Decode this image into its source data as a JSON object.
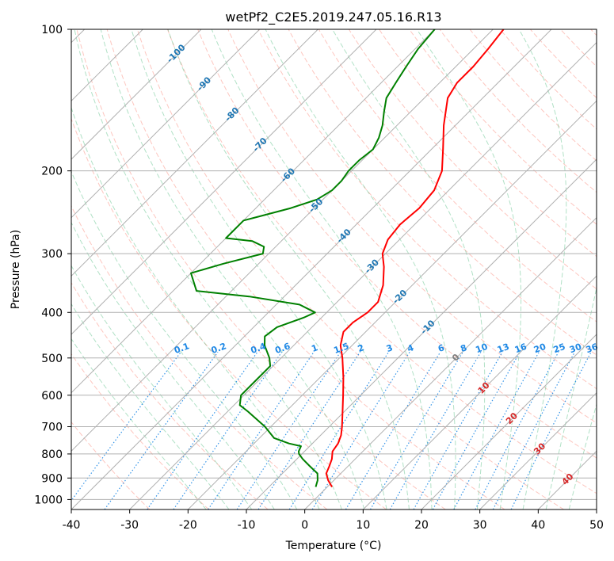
{
  "chart_data": {
    "type": "line",
    "title": "wetPf2_C2E5.2019.247.05.16.R13",
    "xlabel": "Temperature (°C)",
    "ylabel": "Pressure (hPa)",
    "xlim": [
      -40,
      50
    ],
    "ylim": [
      1050,
      100
    ],
    "y_scale": "log",
    "skew": "skew-T",
    "grid": true,
    "x_ticks": [
      "-40",
      "-30",
      "-20",
      "-10",
      "0",
      "10",
      "20",
      "30",
      "40",
      "50"
    ],
    "y_ticks": [
      "100",
      "200",
      "300",
      "400",
      "500",
      "600",
      "700",
      "800",
      "900",
      "1000"
    ],
    "series": [
      {
        "role": "temperature",
        "color": "#ff0000",
        "points": [
          {
            "p": 940,
            "t": 0.8
          },
          {
            "p": 910,
            "t": -1.0
          },
          {
            "p": 880,
            "t": -2.5
          },
          {
            "p": 850,
            "t": -3.2
          },
          {
            "p": 820,
            "t": -4.0
          },
          {
            "p": 790,
            "t": -5.2
          },
          {
            "p": 760,
            "t": -5.6
          },
          {
            "p": 730,
            "t": -6.5
          },
          {
            "p": 700,
            "t": -7.8
          },
          {
            "p": 650,
            "t": -10.3
          },
          {
            "p": 600,
            "t": -13.0
          },
          {
            "p": 550,
            "t": -16.0
          },
          {
            "p": 500,
            "t": -19.5
          },
          {
            "p": 470,
            "t": -22.0
          },
          {
            "p": 440,
            "t": -23.8
          },
          {
            "p": 420,
            "t": -23.8
          },
          {
            "p": 400,
            "t": -23.0
          },
          {
            "p": 380,
            "t": -23.0
          },
          {
            "p": 350,
            "t": -25.0
          },
          {
            "p": 320,
            "t": -28.0
          },
          {
            "p": 300,
            "t": -30.5
          },
          {
            "p": 280,
            "t": -32.0
          },
          {
            "p": 260,
            "t": -32.5
          },
          {
            "p": 240,
            "t": -32.0
          },
          {
            "p": 220,
            "t": -32.5
          },
          {
            "p": 200,
            "t": -34.5
          },
          {
            "p": 180,
            "t": -38.0
          },
          {
            "p": 160,
            "t": -42.0
          },
          {
            "p": 140,
            "t": -46.0
          },
          {
            "p": 130,
            "t": -47.0
          },
          {
            "p": 120,
            "t": -47.0
          },
          {
            "p": 110,
            "t": -47.5
          },
          {
            "p": 100,
            "t": -48.2
          }
        ]
      },
      {
        "role": "dewpoint",
        "color": "#008000",
        "points": [
          {
            "p": 940,
            "t": -2.0
          },
          {
            "p": 910,
            "t": -2.8
          },
          {
            "p": 880,
            "t": -4.0
          },
          {
            "p": 850,
            "t": -6.5
          },
          {
            "p": 820,
            "t": -9.0
          },
          {
            "p": 800,
            "t": -10.5
          },
          {
            "p": 790,
            "t": -11.0
          },
          {
            "p": 770,
            "t": -11.5
          },
          {
            "p": 760,
            "t": -14.0
          },
          {
            "p": 740,
            "t": -17.5
          },
          {
            "p": 700,
            "t": -21.0
          },
          {
            "p": 650,
            "t": -26.5
          },
          {
            "p": 630,
            "t": -29.0
          },
          {
            "p": 600,
            "t": -30.5
          },
          {
            "p": 560,
            "t": -30.5
          },
          {
            "p": 520,
            "t": -30.5
          },
          {
            "p": 500,
            "t": -32.0
          },
          {
            "p": 470,
            "t": -35.0
          },
          {
            "p": 450,
            "t": -36.5
          },
          {
            "p": 430,
            "t": -36.0
          },
          {
            "p": 410,
            "t": -33.0
          },
          {
            "p": 400,
            "t": -32.0
          },
          {
            "p": 385,
            "t": -36.0
          },
          {
            "p": 370,
            "t": -46.0
          },
          {
            "p": 360,
            "t": -56.0
          },
          {
            "p": 330,
            "t": -60.0
          },
          {
            "p": 315,
            "t": -56.0
          },
          {
            "p": 300,
            "t": -51.0
          },
          {
            "p": 290,
            "t": -52.0
          },
          {
            "p": 282,
            "t": -55.0
          },
          {
            "p": 278,
            "t": -60.0
          },
          {
            "p": 255,
            "t": -60.0
          },
          {
            "p": 250,
            "t": -58.0
          },
          {
            "p": 240,
            "t": -54.0
          },
          {
            "p": 230,
            "t": -51.0
          },
          {
            "p": 220,
            "t": -50.0
          },
          {
            "p": 210,
            "t": -50.0
          },
          {
            "p": 200,
            "t": -50.5
          },
          {
            "p": 190,
            "t": -50.5
          },
          {
            "p": 180,
            "t": -50.0
          },
          {
            "p": 170,
            "t": -51.0
          },
          {
            "p": 160,
            "t": -52.5
          },
          {
            "p": 150,
            "t": -54.5
          },
          {
            "p": 140,
            "t": -56.5
          },
          {
            "p": 130,
            "t": -57.5
          },
          {
            "p": 120,
            "t": -58.5
          },
          {
            "p": 110,
            "t": -59.5
          },
          {
            "p": 100,
            "t": -60.0
          }
        ]
      }
    ],
    "background_lines": {
      "isotherms_color": "#b0b0b0",
      "dry_adiabats_color": "#fa8072",
      "moist_adiabats_color": "#3cb371",
      "mixing_ratio_color": "#1e88e5"
    },
    "isotherm_labels": [
      "-100",
      "-90",
      "-80",
      "-70",
      "-60",
      "-50",
      "-40",
      "-30",
      "-20",
      "-10",
      "0",
      "10",
      "20",
      "30",
      "40"
    ],
    "mixing_ratio_labels": [
      "0.1",
      "0.2",
      "0.4",
      "0.6",
      "1",
      "1.5",
      "2",
      "3",
      "4",
      "6",
      "8",
      "10",
      "13",
      "16",
      "20",
      "25",
      "30",
      "36"
    ],
    "label_colors": {
      "cold": "#1f77b4",
      "zero": "#808080",
      "warm": "#d62728",
      "mixing": "#1e88e5"
    }
  }
}
